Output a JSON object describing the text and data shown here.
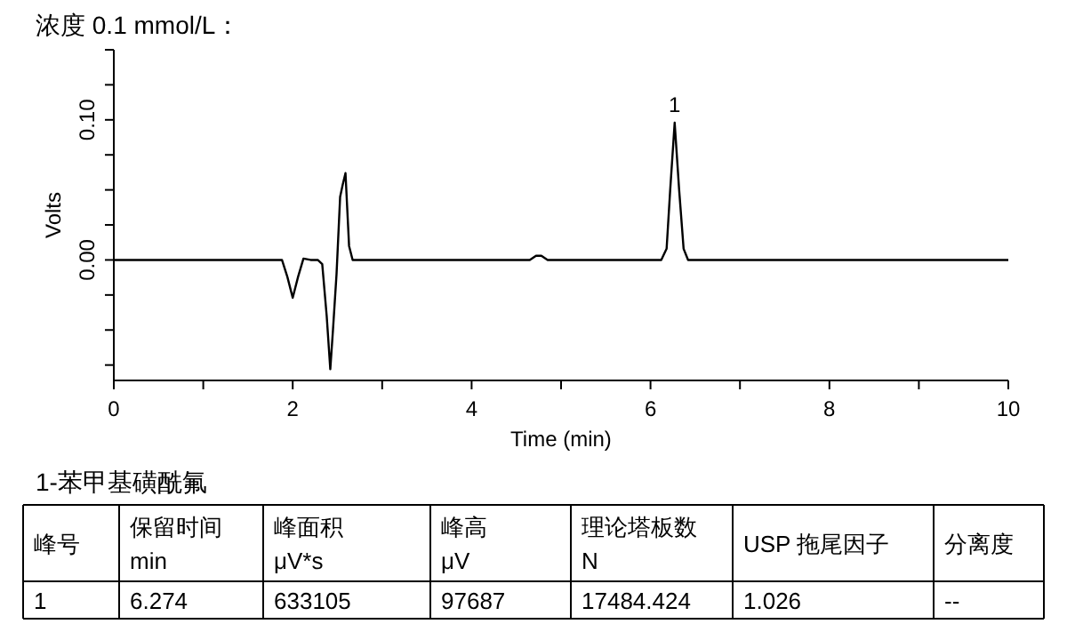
{
  "chart_data": {
    "type": "line",
    "title": "浓度 0.1 mmol/L：",
    "xlabel": "Time (min)",
    "ylabel": "Volts",
    "xlim": [
      0,
      10
    ],
    "ylim": [
      -0.086,
      0.15
    ],
    "xticks": [
      0,
      {
        "value": 1,
        "label": null
      },
      2,
      {
        "value": 3,
        "label": null
      },
      4,
      {
        "value": 5,
        "label": null
      },
      6,
      {
        "value": 7,
        "label": null
      },
      8,
      {
        "value": 9,
        "label": null
      },
      10
    ],
    "yticks": [
      {
        "value": -0.075,
        "label": null
      },
      {
        "value": -0.05,
        "label": null
      },
      {
        "value": -0.025,
        "label": null
      },
      {
        "value": 0,
        "label": "0.00"
      },
      {
        "value": 0.025,
        "label": null
      },
      {
        "value": 0.05,
        "label": null
      },
      {
        "value": 0.075,
        "label": null
      },
      {
        "value": 0.1,
        "label": "0.10"
      },
      {
        "value": 0.125,
        "label": null
      },
      {
        "value": 0.15,
        "label": null
      }
    ],
    "grid": false,
    "marker": "none",
    "line_style": "solid",
    "series": [
      {
        "color": "#000000",
        "x": [
          0,
          1.82,
          1.88,
          1.94,
          2.0,
          2.06,
          2.12,
          2.2,
          2.28,
          2.33,
          2.38,
          2.42,
          2.45,
          2.49,
          2.53,
          2.56,
          2.59,
          2.63,
          2.67,
          4.65,
          4.72,
          4.78,
          4.85,
          6.12,
          6.18,
          6.22,
          6.27,
          6.32,
          6.37,
          6.42,
          10
        ],
        "values": [
          0,
          0,
          0,
          -0.012,
          -0.027,
          -0.012,
          0.001,
          0,
          0,
          -0.003,
          -0.04,
          -0.078,
          -0.05,
          -0.01,
          0.045,
          0.054,
          0.062,
          0.01,
          0,
          0,
          0.003,
          0.003,
          0,
          0,
          0.008,
          0.05,
          0.098,
          0.05,
          0.008,
          0,
          0
        ]
      }
    ],
    "annotations": [
      {
        "text": "1",
        "x": 6.27,
        "y": 0.098
      },
      "1-苯甲基磺酰氟",
      "峰号",
      "保留时间\nmin",
      "峰面积\nμV*s",
      "峰高\nμV",
      "理论塔板数\nN",
      "USP 拖尾因子",
      "分离度",
      "1",
      "6.274",
      "633105",
      "97687",
      "17484.424",
      "1.026",
      "--"
    ]
  }
}
